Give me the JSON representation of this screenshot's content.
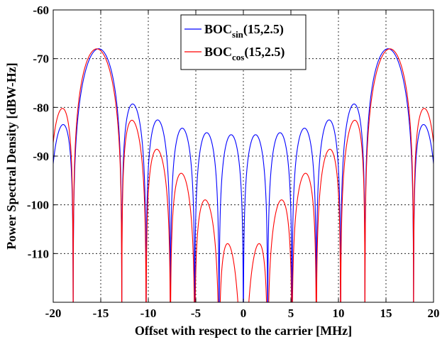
{
  "chart_data": {
    "type": "line",
    "title": "",
    "xlabel": "Offset with respect to the carrier [MHz]",
    "ylabel": "Power Spectral Density [dBW-Hz]",
    "xlim": [
      -20,
      20
    ],
    "ylim": [
      -120,
      -60
    ],
    "xticks": [
      -20,
      -15,
      -10,
      -5,
      0,
      5,
      10,
      15,
      20
    ],
    "yticks": [
      -60,
      -70,
      -80,
      -90,
      -100,
      -110
    ],
    "grid": true,
    "legend": {
      "placement": "top-center",
      "entries": [
        {
          "base": "BOC",
          "subscript": "sin",
          "suffix": "(15,2.5)",
          "color": "#0000ff"
        },
        {
          "base": "BOC",
          "subscript": "cos",
          "suffix": "(15,2.5)",
          "color": "#ff0000"
        }
      ]
    },
    "series": [
      {
        "name": "BOCsin(15,2.5)",
        "color": "#0000ff",
        "modulation": "sin",
        "fs_mhz": 15.345,
        "fc_mhz": 2.5575
      },
      {
        "name": "BOCcos(15,2.5)",
        "color": "#ff0000",
        "modulation": "cos",
        "fs_mhz": 15.345,
        "fc_mhz": 2.5575
      }
    ]
  }
}
